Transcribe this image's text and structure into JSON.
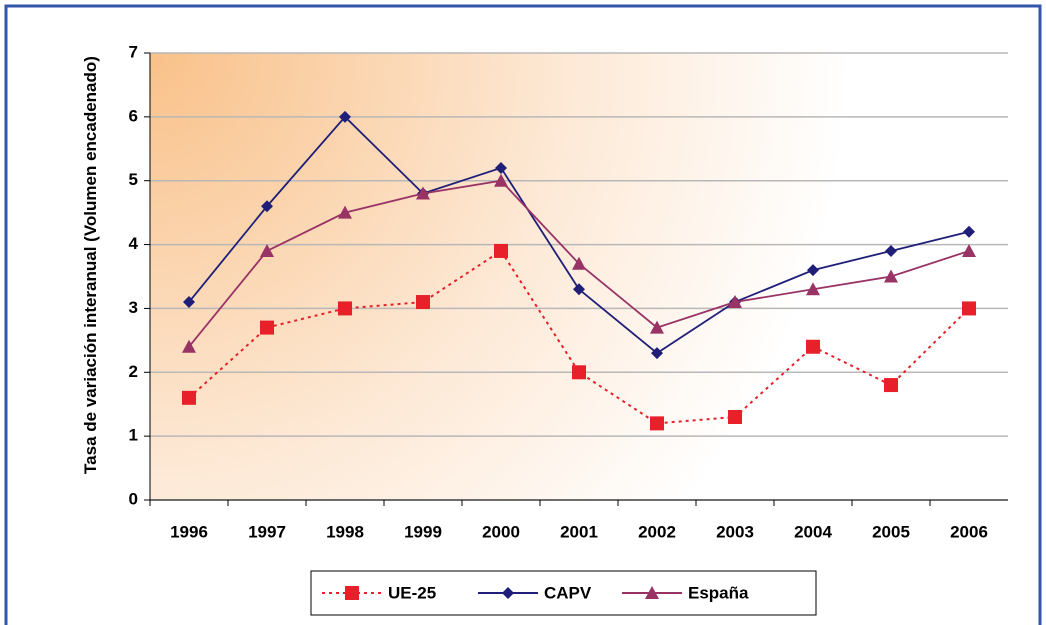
{
  "chart_data": {
    "type": "line",
    "y_label": "Tasa de variación interanual (Volumen encadenado)",
    "categories": [
      "1996",
      "1997",
      "1998",
      "1999",
      "2000",
      "2001",
      "2002",
      "2003",
      "2004",
      "2005",
      "2006"
    ],
    "series": [
      {
        "name": "UE-25",
        "color": "#e8202a",
        "marker": "square",
        "dashed": true,
        "values": [
          1.6,
          2.7,
          3.0,
          3.1,
          3.9,
          2.0,
          1.2,
          1.3,
          2.4,
          1.8,
          3.0
        ]
      },
      {
        "name": "CAPV",
        "color": "#1f1f7a",
        "marker": "diamond",
        "dashed": false,
        "values": [
          3.1,
          4.6,
          6.0,
          4.8,
          5.2,
          3.3,
          2.3,
          3.1,
          3.6,
          3.9,
          4.2
        ]
      },
      {
        "name": "España",
        "color": "#993366",
        "marker": "triangle",
        "dashed": false,
        "values": [
          2.4,
          3.9,
          4.5,
          4.8,
          5.0,
          3.7,
          2.7,
          3.1,
          3.3,
          3.5,
          3.9
        ]
      }
    ],
    "ylim": [
      0,
      7
    ],
    "yticks": [
      0,
      1,
      2,
      3,
      4,
      5,
      6,
      7
    ],
    "grid": true,
    "legend": "bottom"
  }
}
